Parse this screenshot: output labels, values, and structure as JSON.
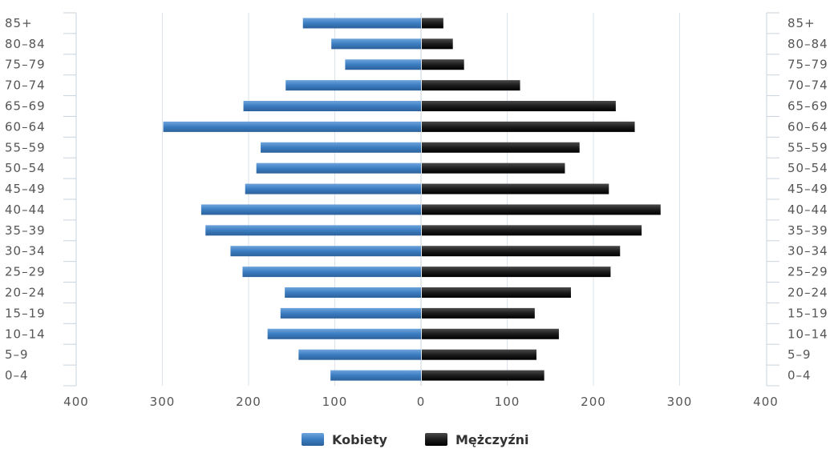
{
  "chart_data": {
    "type": "bar",
    "orientation": "horizontal-pyramid",
    "categories": [
      "0–4",
      "5–9",
      "10–14",
      "15–19",
      "20–24",
      "25–29",
      "30–34",
      "35–39",
      "40–44",
      "45–49",
      "50–54",
      "55–59",
      "60–64",
      "65–69",
      "70–74",
      "75–79",
      "80–84",
      "85+"
    ],
    "series": [
      {
        "name": "Kobiety",
        "side": "left",
        "color": "#3a7cc0",
        "values": [
          105,
          142,
          178,
          163,
          158,
          207,
          221,
          250,
          255,
          204,
          191,
          186,
          299,
          206,
          157,
          88,
          104,
          137
        ]
      },
      {
        "name": "Mężczyźni",
        "side": "right",
        "color": "#1c1c1c",
        "values": [
          142,
          133,
          159,
          131,
          173,
          219,
          230,
          255,
          277,
          217,
          166,
          183,
          247,
          225,
          114,
          49,
          36,
          25
        ]
      }
    ],
    "x_ticks": [
      "400",
      "300",
      "200",
      "100",
      "0",
      "100",
      "200",
      "300",
      "400"
    ],
    "xlim": [
      -400,
      400
    ],
    "grid": true,
    "legend": "bottom-center"
  }
}
